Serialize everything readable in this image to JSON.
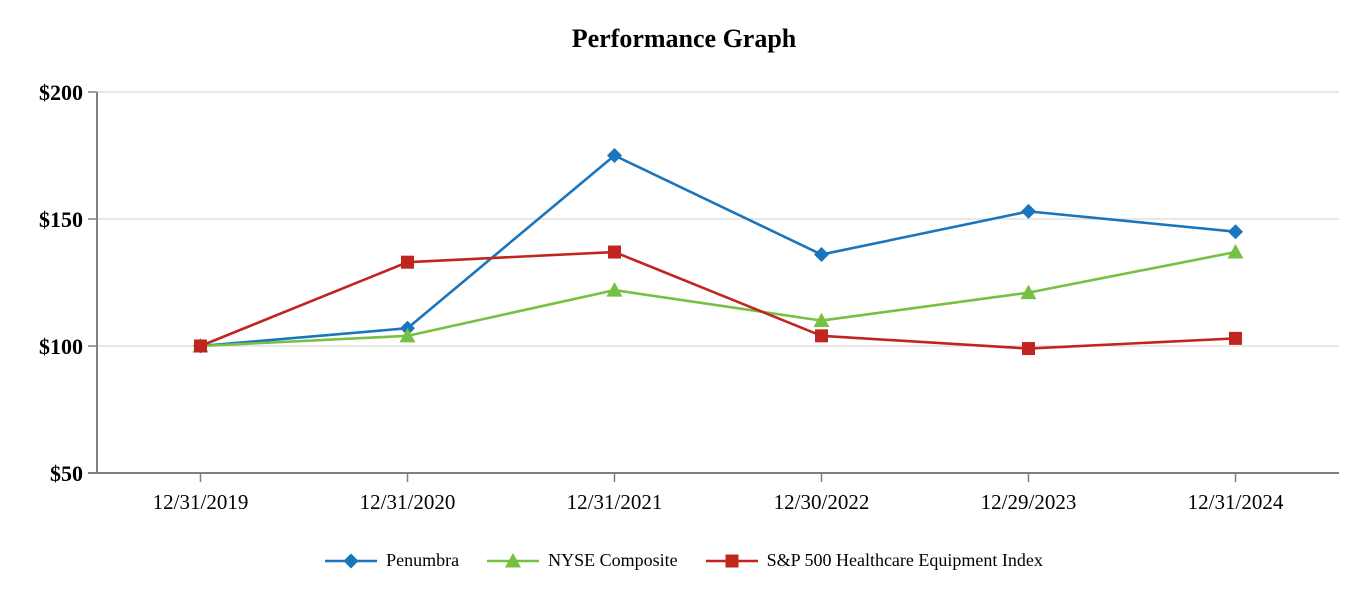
{
  "page": {
    "background_color": "#FFFFFF"
  },
  "chart_data": {
    "type": "line",
    "title": "Performance Graph",
    "xlabel": "",
    "ylabel": "",
    "x_categories": [
      "12/31/2019",
      "12/31/2020",
      "12/31/2021",
      "12/30/2022",
      "12/29/2023",
      "12/31/2024"
    ],
    "y_ticks": [
      200,
      150,
      100,
      50
    ],
    "y_tick_labels": [
      "$200",
      "$150",
      "$100",
      "$50"
    ],
    "ylim": [
      50,
      200
    ],
    "grid": "horizontal",
    "legend_position": "bottom",
    "axis_color": "#808080",
    "grid_color": "#D9D9D9",
    "series": [
      {
        "name": "Penumbra",
        "color": "#1B75BC",
        "marker": "diamond",
        "values": [
          100,
          107,
          175,
          136,
          153,
          145
        ]
      },
      {
        "name": "NYSE Composite",
        "color": "#76C043",
        "marker": "triangle",
        "values": [
          100,
          104,
          122,
          110,
          121,
          137
        ]
      },
      {
        "name": "S&P 500 Healthcare Equipment Index",
        "color": "#C0261D",
        "marker": "square",
        "values": [
          100,
          133,
          137,
          104,
          99,
          103
        ]
      }
    ]
  }
}
